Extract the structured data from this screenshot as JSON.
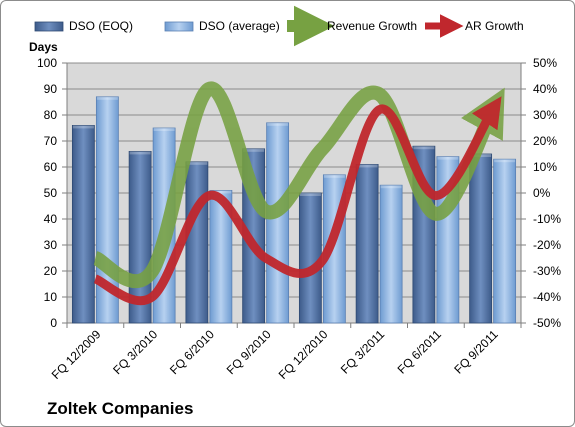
{
  "chart_data": {
    "type": "bar",
    "subtype": "combo-bar-line",
    "categories": [
      "FQ 12/2009",
      "FQ 3/2010",
      "FQ 6/2010",
      "FQ 9/2010",
      "FQ 12/2010",
      "FQ 3/2011",
      "FQ 6/2011",
      "FQ 9/2011"
    ],
    "series": [
      {
        "name": "DSO (EOQ)",
        "type": "bar",
        "axis": "left",
        "color": "#4f6fa0",
        "values": [
          76,
          66,
          62,
          67,
          50,
          61,
          68,
          65
        ]
      },
      {
        "name": "DSO (average)",
        "type": "bar",
        "axis": "left",
        "color": "#8db3e2",
        "values": [
          87,
          75,
          51,
          77,
          57,
          53,
          64,
          63
        ]
      },
      {
        "name": "Revenue Growth",
        "type": "line",
        "axis": "right",
        "color": "#77a142",
        "values": [
          -25,
          -30,
          40,
          -7,
          17,
          38,
          -8,
          32
        ]
      },
      {
        "name": "AR Growth",
        "type": "line",
        "axis": "right",
        "color": "#c0272d",
        "values": [
          -33,
          -40,
          -1,
          -25,
          -26,
          32,
          -1,
          32
        ]
      }
    ],
    "ylabel": "Days",
    "ylim": [
      0,
      100
    ],
    "yticks": [
      "0",
      "10",
      "20",
      "30",
      "40",
      "50",
      "60",
      "70",
      "80",
      "90",
      "100"
    ],
    "y2lim": [
      -50,
      50
    ],
    "y2ticks": [
      "-50%",
      "-40%",
      "-30%",
      "-20%",
      "-10%",
      "0%",
      "10%",
      "20%",
      "30%",
      "40%",
      "50%"
    ],
    "grid": true,
    "legend_position": "top"
  },
  "footer": {
    "company": "Zoltek Companies"
  }
}
